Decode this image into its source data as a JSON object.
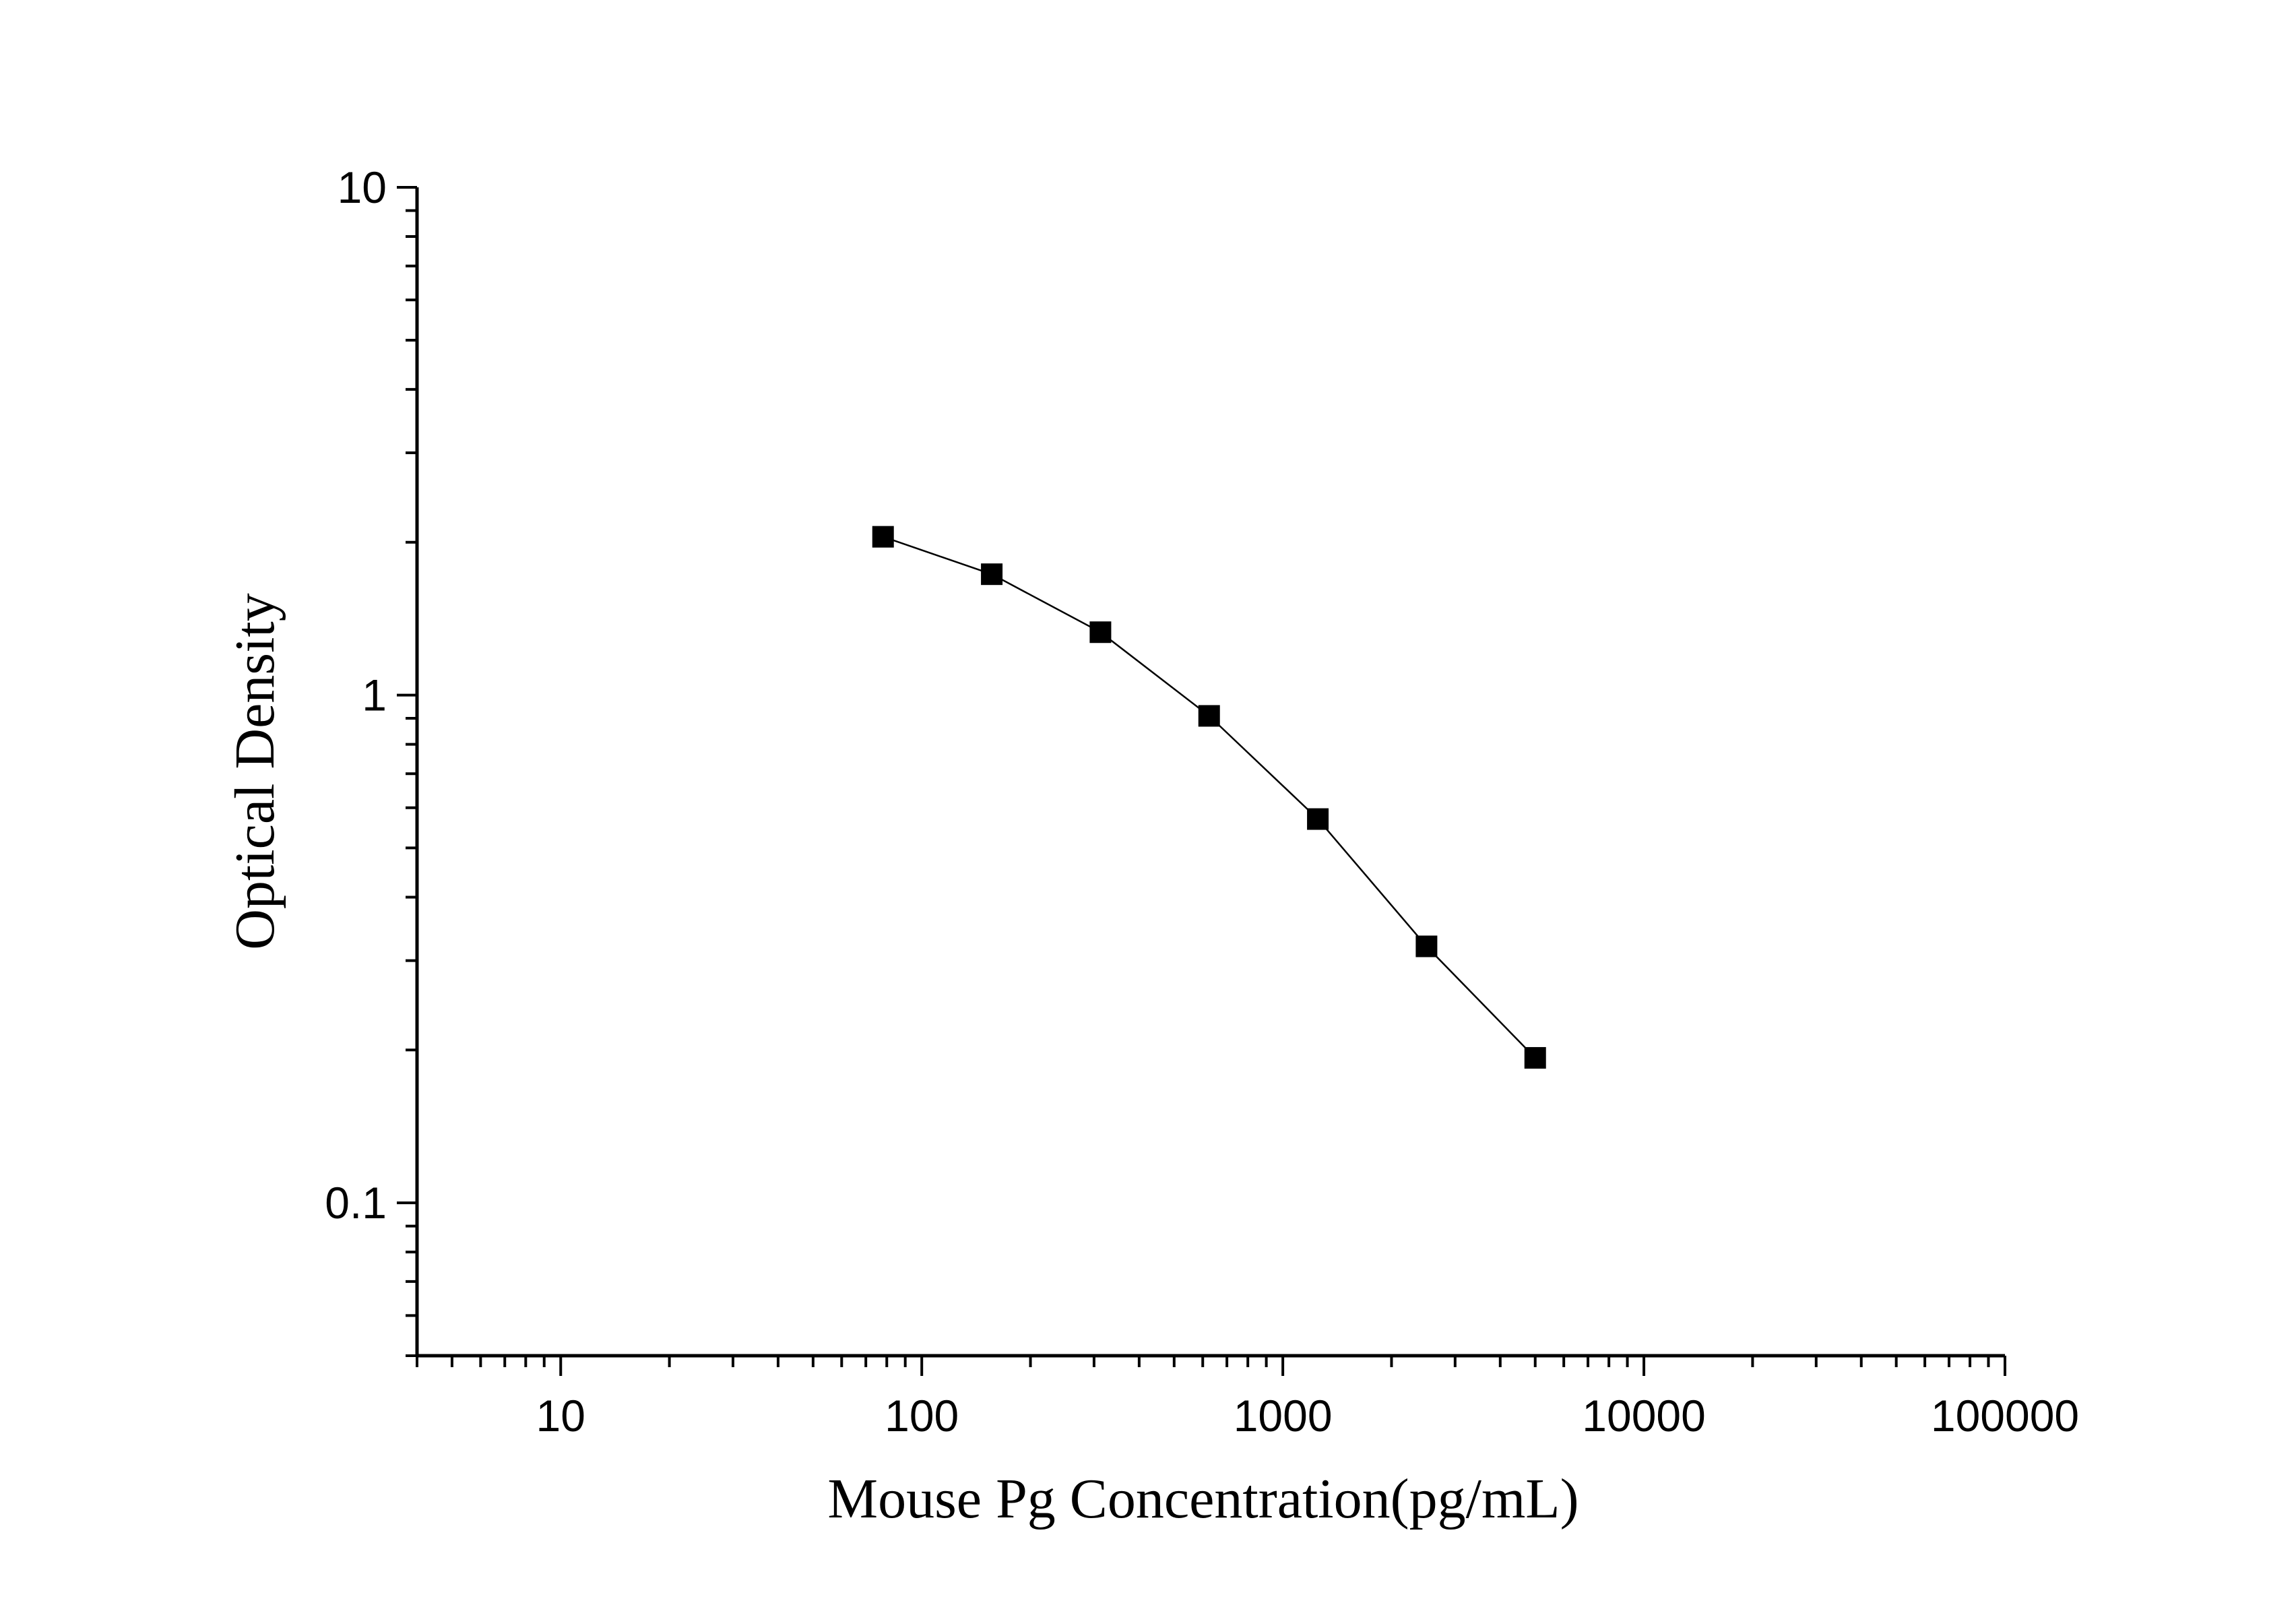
{
  "chart_data": {
    "type": "line",
    "title": "",
    "xlabel": "Mouse Pg Concentration(pg/mL)",
    "ylabel": "Optical Density",
    "xscale": "log",
    "yscale": "log",
    "xlim": [
      4,
      100000
    ],
    "ylim": [
      0.05,
      10
    ],
    "grid": false,
    "legend": "none",
    "x_tick_labels": [
      "10",
      "100",
      "1000",
      "10000",
      "100000"
    ],
    "y_tick_labels": [
      "0.1",
      "1",
      "10"
    ],
    "x_tick_values": [
      10,
      100,
      1000,
      10000,
      100000
    ],
    "y_tick_values": [
      0.1,
      1,
      10
    ],
    "series": [
      {
        "marker": "square",
        "color": "#000000",
        "x": [
          78.125,
          156.25,
          312.5,
          625,
          1250,
          2500,
          5000
        ],
        "y": [
          2.05,
          1.73,
          1.33,
          0.91,
          0.57,
          0.32,
          0.193
        ]
      }
    ]
  }
}
